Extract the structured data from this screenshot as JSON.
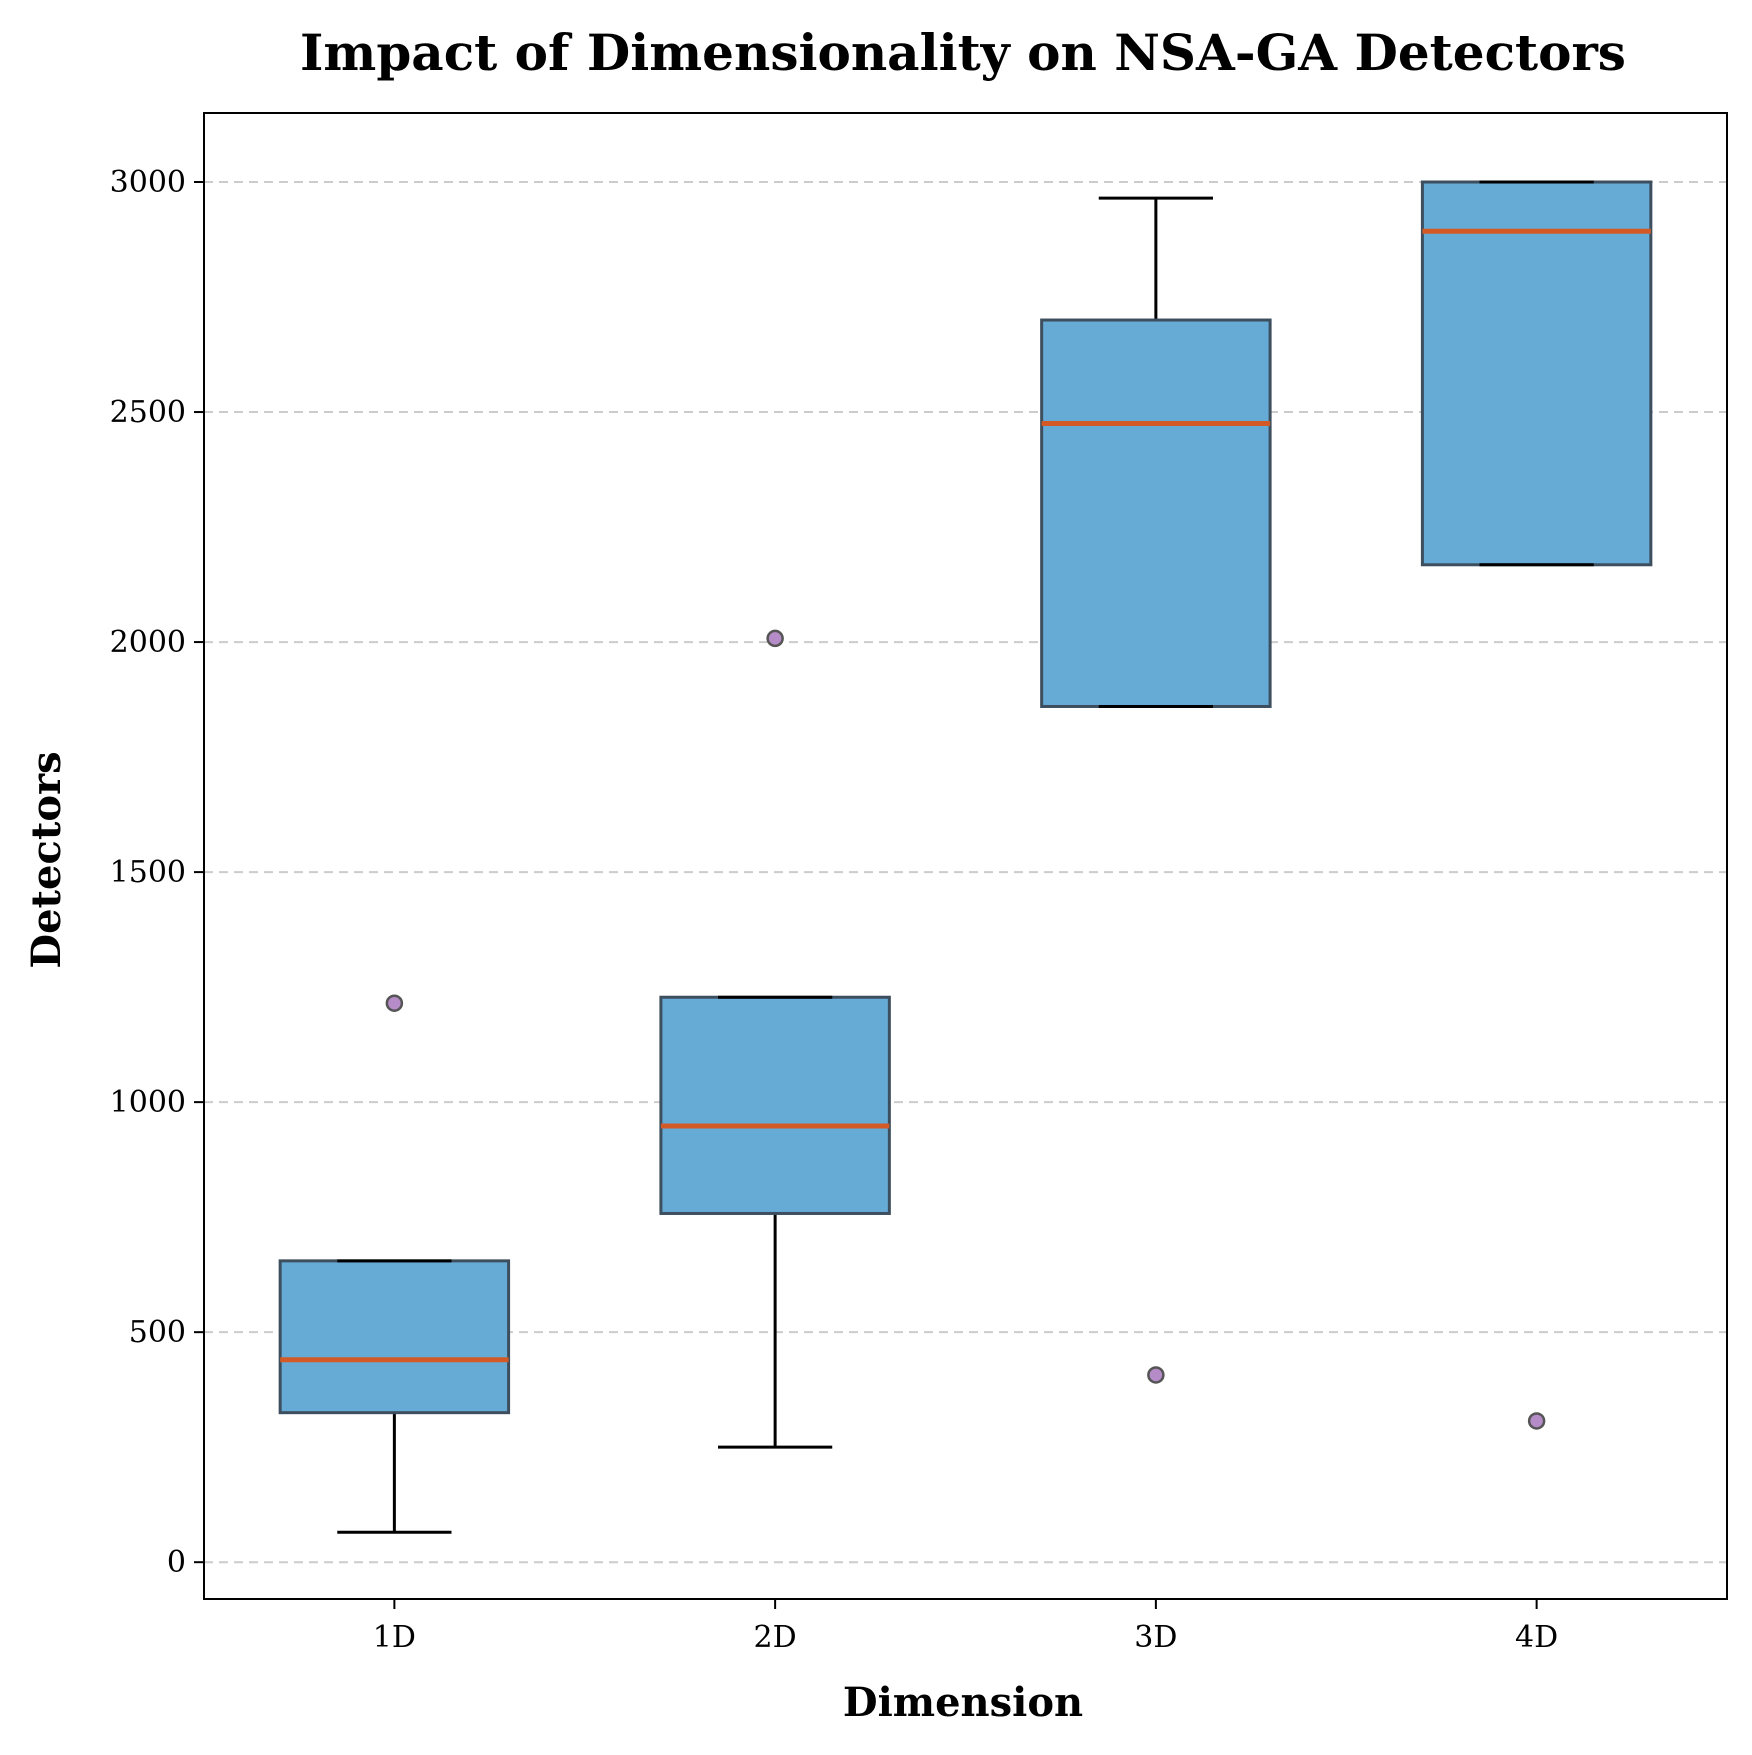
{
  "chart_data": {
    "type": "box",
    "title": "Impact of Dimensionality on NSA-GA Detectors",
    "xlabel": "Dimension",
    "ylabel": "Detectors",
    "categories": [
      "1D",
      "2D",
      "3D",
      "4D"
    ],
    "ylim": [
      -80,
      3150
    ],
    "yticks": [
      0,
      500,
      1000,
      1500,
      2000,
      2500,
      3000
    ],
    "grid": "horizontal dashed",
    "boxes": [
      {
        "category": "1D",
        "whisker_low": 65,
        "q1": 325,
        "median": 440,
        "q3": 655,
        "whisker_high": 655,
        "outliers": [
          1215
        ]
      },
      {
        "category": "2D",
        "whisker_low": 250,
        "q1": 758,
        "median": 948,
        "q3": 1228,
        "whisker_high": 1228,
        "outliers": [
          2008
        ]
      },
      {
        "category": "3D",
        "whisker_low": 1860,
        "q1": 1860,
        "median": 2475,
        "q3": 2700,
        "whisker_high": 2965,
        "outliers": [
          407
        ]
      },
      {
        "category": "4D",
        "whisker_low": 2168,
        "q1": 2168,
        "median": 2893,
        "q3": 3000,
        "whisker_high": 3000,
        "outliers": [
          307
        ]
      }
    ],
    "colors": {
      "box_fill": "#66aad6",
      "box_edge": "#3d4f5e",
      "median": "#d35a26",
      "whisker": "#000000",
      "outlier_fill": "#b68cc8",
      "outlier_edge": "#555555",
      "grid": "#cccccc"
    }
  }
}
